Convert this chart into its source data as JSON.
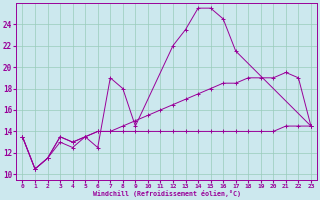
{
  "xlabel": "Windchill (Refroidissement éolien,°C)",
  "bg_color": "#cce8ee",
  "line_color": "#990099",
  "grid_color": "#99ccbb",
  "xlim": [
    -0.5,
    23.5
  ],
  "ylim": [
    9.5,
    26
  ],
  "xticks": [
    0,
    1,
    2,
    3,
    4,
    5,
    6,
    7,
    8,
    9,
    10,
    11,
    12,
    13,
    14,
    15,
    16,
    17,
    18,
    19,
    20,
    21,
    22,
    23
  ],
  "yticks": [
    10,
    12,
    14,
    16,
    18,
    20,
    22,
    24
  ],
  "curve1": [
    [
      0,
      13.5
    ],
    [
      1,
      10.5
    ],
    [
      2,
      11.5
    ],
    [
      3,
      13.5
    ],
    [
      4,
      13.0
    ],
    [
      5,
      13.5
    ],
    [
      6,
      12.5
    ],
    [
      7,
      19.0
    ],
    [
      8,
      18.0
    ],
    [
      9,
      14.5
    ],
    [
      12,
      22.0
    ],
    [
      13,
      23.5
    ],
    [
      14,
      25.5
    ],
    [
      15,
      25.5
    ],
    [
      16,
      24.5
    ],
    [
      17,
      21.5
    ],
    [
      23,
      14.5
    ]
  ],
  "curve2": [
    [
      0,
      13.5
    ],
    [
      1,
      10.5
    ],
    [
      2,
      11.5
    ],
    [
      3,
      13.0
    ],
    [
      4,
      12.5
    ],
    [
      5,
      13.5
    ],
    [
      6,
      14.0
    ],
    [
      7,
      14.0
    ],
    [
      8,
      14.5
    ],
    [
      9,
      15.0
    ],
    [
      10,
      15.5
    ],
    [
      11,
      16.0
    ],
    [
      12,
      16.5
    ],
    [
      13,
      17.0
    ],
    [
      14,
      17.5
    ],
    [
      15,
      18.0
    ],
    [
      16,
      18.5
    ],
    [
      17,
      18.5
    ],
    [
      18,
      19.0
    ],
    [
      19,
      19.0
    ],
    [
      20,
      19.0
    ],
    [
      21,
      19.5
    ],
    [
      22,
      19.0
    ],
    [
      23,
      14.5
    ]
  ],
  "curve3": [
    [
      0,
      13.5
    ],
    [
      1,
      10.5
    ],
    [
      2,
      11.5
    ],
    [
      3,
      13.5
    ],
    [
      4,
      13.0
    ],
    [
      5,
      13.5
    ],
    [
      6,
      14.0
    ],
    [
      7,
      14.0
    ],
    [
      8,
      14.0
    ],
    [
      9,
      14.0
    ],
    [
      10,
      14.0
    ],
    [
      11,
      14.0
    ],
    [
      12,
      14.0
    ],
    [
      13,
      14.0
    ],
    [
      14,
      14.0
    ],
    [
      15,
      14.0
    ],
    [
      16,
      14.0
    ],
    [
      17,
      14.0
    ],
    [
      18,
      14.0
    ],
    [
      19,
      14.0
    ],
    [
      20,
      14.0
    ],
    [
      21,
      14.5
    ],
    [
      22,
      14.5
    ],
    [
      23,
      14.5
    ]
  ]
}
